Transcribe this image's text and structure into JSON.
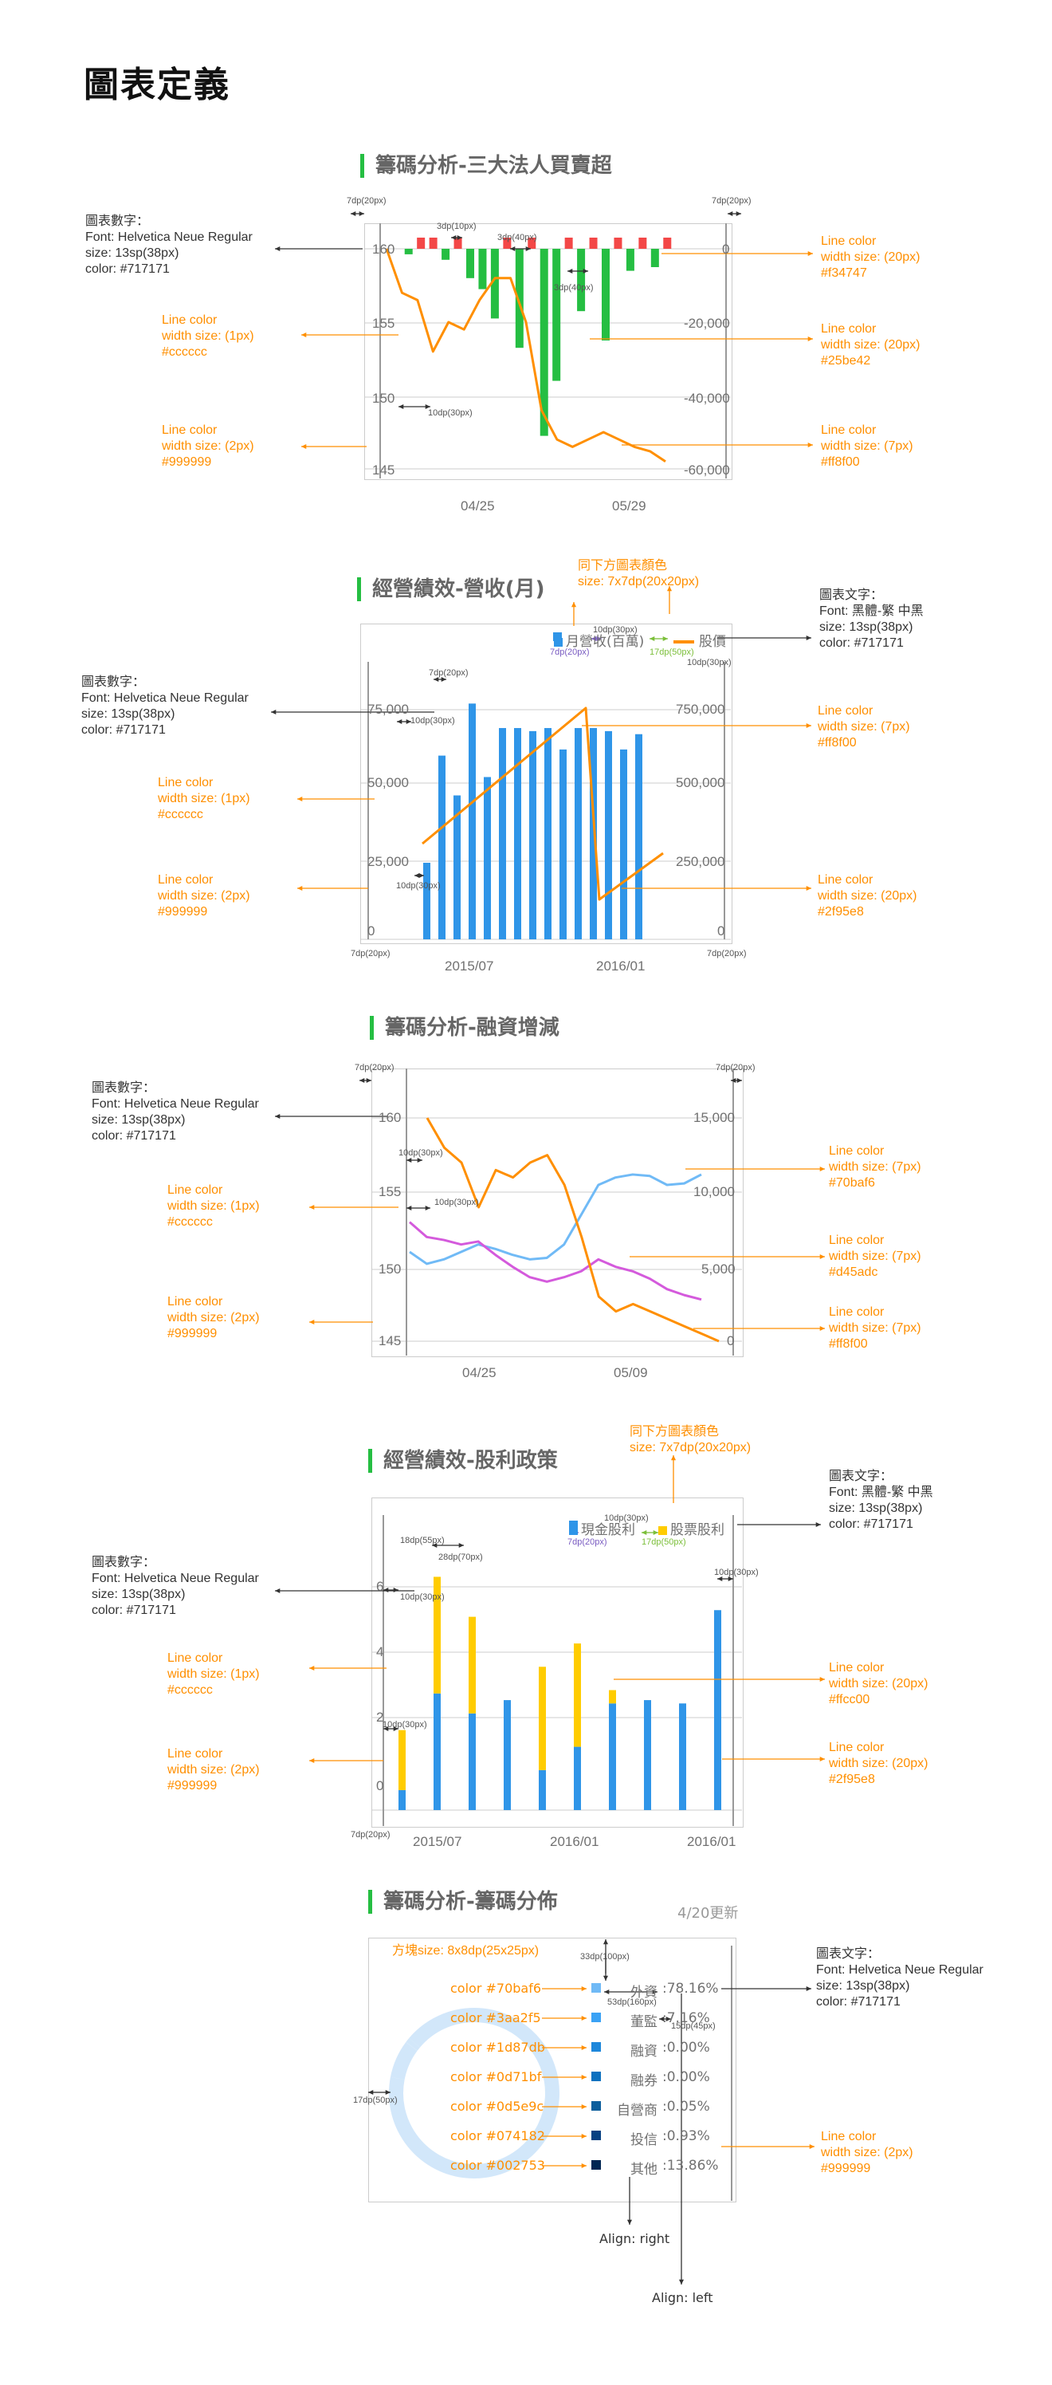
{
  "page_title": "圖表定義",
  "common": {
    "num_font": "圖表數字：\nFont: Helvetica Neue Regular\nsize: 13sp(38px)\ncolor: #717171",
    "text_font_hei": "圖表文字：\nFont: 黑體-繁 中黑\nsize: 13sp(38px)\ncolor: #717171",
    "text_font_helv": "圖表文字：\nFont: Helvetica Neue Regular\nsize: 13sp(38px)\ncolor: #717171",
    "grid_line": "Line color\nwidth size: (1px)\n#cccccc",
    "axis_line": "Line color\nwidth size: (2px)\n#999999",
    "legend_note": "同下方圖表顏色\nsize: 7x7dp(20x20px)"
  },
  "colors": {
    "red": "#f34747",
    "green": "#25be42",
    "orange": "#ff8f00",
    "blue": "#2f95e8",
    "lightblue": "#70baf6",
    "purple": "#d45adc",
    "yellow": "#ffcc00",
    "grid": "#cccccc",
    "axis": "#999999",
    "text": "#717171"
  },
  "sections": {
    "s1": {
      "title": "籌碼分析-三大法人買賣超",
      "dims": [
        "7dp(20px)",
        "7dp(20px)",
        "3dp(10px)",
        "3dp(40px)",
        "3dp(40px)",
        "10dp(30px)"
      ],
      "red_line": "Line color\nwidth size: (20px)\n#f34747",
      "green_line": "Line color\nwidth size: (20px)\n#25be42",
      "orange_line": "Line color\nwidth size: (7px)\n#ff8f00"
    },
    "s2": {
      "title": "經營績效-營收(月)",
      "dims": [
        "10dp(30px)",
        "7dp(20px)",
        "17dp(50px)",
        "10dp(30px)",
        "7dp(20px)",
        "10dp(30px)",
        "10dp(30px)",
        "7dp(20px)",
        "7dp(20px)"
      ],
      "orange_line": "Line color\nwidth size: (7px)\n#ff8f00",
      "blue_line": "Line color\nwidth size: (20px)\n#2f95e8"
    },
    "s3": {
      "title": "籌碼分析-融資增減",
      "dims": [
        "7dp(20px)",
        "7dp(20px)",
        "10dp(30px)",
        "10dp(30px)"
      ],
      "lightblue_line": "Line color\nwidth size: (7px)\n#70baf6",
      "purple_line": "Line color\nwidth size: (7px)\n#d45adc",
      "orange_line": "Line color\nwidth size: (7px)\n#ff8f00"
    },
    "s4": {
      "title": "經營績效-股利政策",
      "dims": [
        "10dp(30px)",
        "7dp(20px)",
        "17dp(50px)",
        "18dp(55px)",
        "10dp(30px)",
        "10dp(30px)",
        "10dp(30px)",
        "7dp(20px)",
        "28dp(70px)"
      ],
      "yellow_line": "Line color\nwidth size: (20px)\n#ffcc00",
      "blue_line": "Line color\nwidth size: (20px)\n#2f95e8"
    },
    "s5": {
      "title": "籌碼分析-籌碼分佈",
      "update": "4/20更新",
      "square_note": "方塊size: 8x8dp(25x25px)",
      "dims": [
        "33dp(100px)",
        "53dp(160px)",
        "15dp(45px)",
        "17dp(50px)"
      ],
      "axis_line": "Line color\nwidth size: (2px)\n#999999",
      "align_right": "Align: right",
      "align_left": "Align: left"
    }
  },
  "chart_data": [
    {
      "type": "bar",
      "title": "籌碼分析-三大法人買賣超",
      "x_ticks": [
        "04/25",
        "05/29"
      ],
      "y_left_ticks": [
        "160",
        "155",
        "150",
        "145"
      ],
      "y_right_ticks": [
        "0",
        "-20,000",
        "-40,000",
        "-60,000"
      ],
      "ylim_right": [
        -60000,
        0
      ],
      "ylim_left": [
        145,
        160
      ],
      "series": [
        {
          "values": [
            -1500,
            2500,
            3000,
            -3000,
            2500,
            -8000,
            -11000,
            -19000,
            3500,
            -27000,
            3000,
            -51000,
            -36000,
            1500,
            -17000,
            2000,
            -25000,
            500,
            -6000,
            1000,
            -5000,
            1500
          ]
        },
        {
          "values": [
            160,
            157,
            156.5,
            153,
            155,
            154.5,
            156.5,
            158,
            158,
            155,
            149,
            147,
            146.5,
            147,
            147.5,
            147,
            146.5,
            146.2,
            145.5
          ]
        }
      ]
    },
    {
      "type": "bar",
      "title": "經營績效-營收(月)",
      "x_ticks": [
        "2015/07",
        "2016/01"
      ],
      "y_left_ticks": [
        "75,000",
        "50,000",
        "25,000",
        "0"
      ],
      "y_right_ticks": [
        "750,000",
        "500,000",
        "250,000",
        "0"
      ],
      "ylim_left": [
        0,
        75000
      ],
      "ylim_right": [
        0,
        750000
      ],
      "legend": [
        "月營收(百萬)",
        "股價"
      ],
      "series": [
        {
          "name": "月營收(百萬)",
          "values": [
            25000,
            60000,
            47000,
            77000,
            53000,
            69000,
            69000,
            68000,
            69000,
            62000,
            69000,
            69000,
            68000,
            62000,
            67000
          ]
        },
        {
          "name": "股價",
          "values": [
            310000,
            340000,
            370000,
            400000,
            430000,
            460000,
            490000,
            520000,
            560000,
            600000,
            640000,
            720000,
            120000,
            170000,
            210000,
            240000
          ]
        }
      ]
    },
    {
      "type": "line",
      "title": "籌碼分析-融資增減",
      "x_ticks": [
        "04/25",
        "05/09"
      ],
      "y_left_ticks": [
        "160",
        "155",
        "150",
        "145"
      ],
      "y_right_ticks": [
        "15,000",
        "10,000",
        "5,000",
        "0"
      ],
      "ylim_left": [
        145,
        160
      ],
      "ylim_right": [
        0,
        15000
      ],
      "series": [
        {
          "values": [
            6000,
            5200,
            5500,
            6000,
            6500,
            6200,
            5800,
            5500,
            5600,
            6500,
            8500,
            10500,
            11000,
            11200,
            11100,
            10500,
            10600,
            11200
          ]
        },
        {
          "values": [
            8000,
            7000,
            6800,
            6500,
            6700,
            5800,
            5000,
            4300,
            4000,
            4300,
            4700,
            5500,
            5000,
            4700,
            4200,
            3500,
            3100,
            2800
          ]
        },
        {
          "values": [
            160,
            158,
            157,
            154,
            156.5,
            156,
            157,
            157.5,
            155.5,
            152,
            148,
            147,
            147.5,
            147,
            146.5,
            146,
            145.5,
            145
          ]
        }
      ]
    },
    {
      "type": "bar",
      "title": "經營績效-股利政策",
      "x_ticks": [
        "2015/07",
        "2016/01",
        "2016/01"
      ],
      "y_left_ticks": [
        "6",
        "4",
        "2",
        "0"
      ],
      "ylim": [
        0,
        7
      ],
      "legend": [
        "現金股利",
        "股票股利"
      ],
      "series": [
        {
          "name": "現金股利",
          "values": [
            0.6,
            3.5,
            2.9,
            3.3,
            1.2,
            1.9,
            3.2,
            3.3,
            3.2,
            6.0
          ]
        },
        {
          "name": "股票股利",
          "values": [
            1.8,
            3.5,
            2.9,
            0,
            3.1,
            3.1,
            0.4,
            0,
            0,
            0
          ]
        }
      ]
    },
    {
      "type": "pie",
      "title": "籌碼分析-籌碼分佈",
      "categories": [
        "外資",
        "董監",
        "融資",
        "融券",
        "自營商",
        "投信",
        "其他"
      ],
      "values_text": [
        "78.16%",
        "7.16%",
        "0.00%",
        "0.00%",
        "0.05%",
        "0.93%",
        "13.86%"
      ],
      "values": [
        78.16,
        7.16,
        0.0,
        0.0,
        0.05,
        0.93,
        13.86
      ],
      "colors": [
        "#70baf6",
        "#3aa2f5",
        "#1d87db",
        "#0d71bf",
        "#0d5e9c",
        "#074182",
        "#002753"
      ]
    }
  ]
}
